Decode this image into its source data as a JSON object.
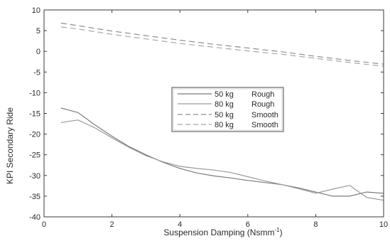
{
  "chart_data": {
    "type": "line",
    "title": "",
    "xlabel": "Suspension Damping (Nsmm",
    "xlabel_superscript": "-1",
    "xlabel_suffix": ")",
    "ylabel": "KPI Secondary Ride",
    "xlim": [
      0,
      10
    ],
    "ylim": [
      -40,
      10
    ],
    "xticks": [
      0,
      2,
      4,
      6,
      8,
      10
    ],
    "yticks": [
      10,
      5,
      0,
      -5,
      -10,
      -15,
      -20,
      -25,
      -30,
      -35,
      -40
    ],
    "xtick_labels": [
      "0",
      "2",
      "4",
      "6",
      "8",
      "10"
    ],
    "ytick_labels": [
      "10",
      "5",
      "0",
      "-5",
      "-10",
      "-15",
      "-20",
      "-25",
      "-30",
      "-35",
      "-40"
    ],
    "grid": false,
    "legend_position": "center",
    "colors": {
      "rough_50": "#7a7a7a",
      "rough_80": "#9a9a9a",
      "smooth_50": "#8e8e8e",
      "smooth_80": "#a8a8a8",
      "axes": "#3a3a3a"
    },
    "series": [
      {
        "name": "50 kg",
        "condition": "Rough",
        "style": "solid",
        "x": [
          0.5,
          1,
          1.5,
          2,
          2.5,
          3,
          3.5,
          4,
          4.5,
          5,
          5.5,
          6,
          6.5,
          7,
          7.5,
          8,
          8.5,
          9,
          9.5,
          10
        ],
        "y": [
          -13.7,
          -14.8,
          -17.8,
          -20.5,
          -23.0,
          -25.0,
          -26.8,
          -28.3,
          -29.4,
          -30.1,
          -30.6,
          -31.2,
          -31.7,
          -32.2,
          -33.0,
          -34.0,
          -35.0,
          -35.0,
          -34.0,
          -34.3
        ]
      },
      {
        "name": "80 kg",
        "condition": "Rough",
        "style": "solid",
        "x": [
          0.5,
          1,
          1.5,
          2,
          2.5,
          3,
          3.5,
          4,
          4.5,
          5,
          5.5,
          6,
          6.5,
          7,
          7.5,
          8,
          8.5,
          9,
          9.5,
          10
        ],
        "y": [
          -17.2,
          -16.6,
          -18.5,
          -20.9,
          -23.2,
          -25.2,
          -26.7,
          -27.8,
          -28.3,
          -28.7,
          -29.3,
          -30.3,
          -31.3,
          -32.2,
          -33.2,
          -34.3,
          -33.3,
          -32.4,
          -35.3,
          -36.0
        ]
      },
      {
        "name": "50 kg",
        "condition": "Smooth",
        "style": "dashed",
        "x": [
          0.5,
          1,
          2,
          3,
          4,
          5,
          6,
          7,
          8,
          9,
          10
        ],
        "y": [
          6.8,
          6.2,
          4.9,
          3.8,
          2.7,
          1.7,
          0.8,
          -0.1,
          -1.2,
          -2.2,
          -3.1
        ]
      },
      {
        "name": "80 kg",
        "condition": "Smooth",
        "style": "dashed",
        "x": [
          0.5,
          1,
          2,
          3,
          4,
          5,
          6,
          7,
          8,
          9,
          10
        ],
        "y": [
          5.9,
          5.4,
          4.1,
          3.0,
          1.9,
          1.0,
          0.1,
          -0.7,
          -1.7,
          -2.7,
          -3.6
        ]
      }
    ]
  }
}
